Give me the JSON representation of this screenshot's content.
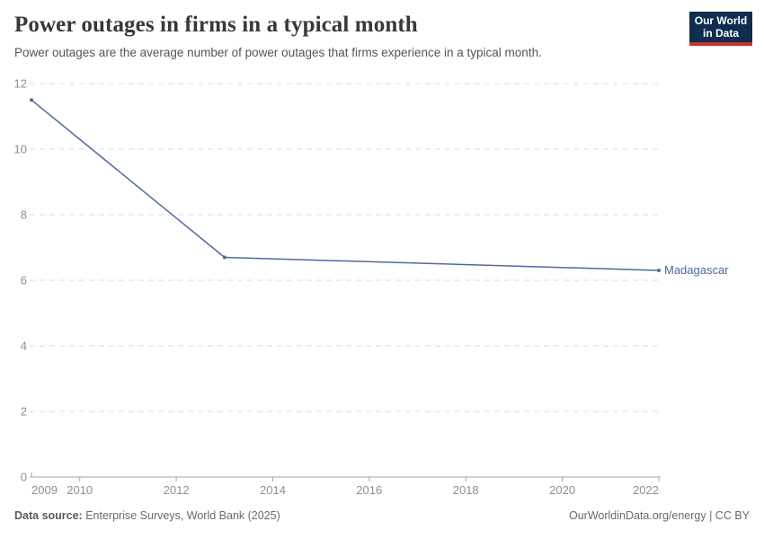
{
  "header": {
    "title": "Power outages in firms in a typical month",
    "subtitle": "Power outages are the average number of power outages that firms experience in a typical month.",
    "logo_line1": "Our World",
    "logo_line2": "in Data",
    "logo_bg_color": "#102d50",
    "logo_accent_color": "#c7302f"
  },
  "chart_data": {
    "type": "line",
    "title": "Power outages in firms in a typical month",
    "xlabel": "",
    "ylabel": "",
    "x_range": [
      2009,
      2022
    ],
    "y_range": [
      0,
      12
    ],
    "x_ticks": [
      2009,
      2010,
      2012,
      2014,
      2016,
      2018,
      2020,
      2022
    ],
    "y_ticks": [
      0,
      2,
      4,
      6,
      8,
      10,
      12
    ],
    "grid": true,
    "legend_position": "end-of-line",
    "series": [
      {
        "name": "Madagascar",
        "color": "#4C6A9C",
        "points": [
          {
            "x": 2009,
            "y": 11.5
          },
          {
            "x": 2013,
            "y": 6.7
          },
          {
            "x": 2022,
            "y": 6.3
          }
        ]
      }
    ]
  },
  "footer": {
    "source_label": "Data source:",
    "source_value": "Enterprise Surveys, World Bank (2025)",
    "link": "OurWorldinData.org/energy | CC BY"
  }
}
